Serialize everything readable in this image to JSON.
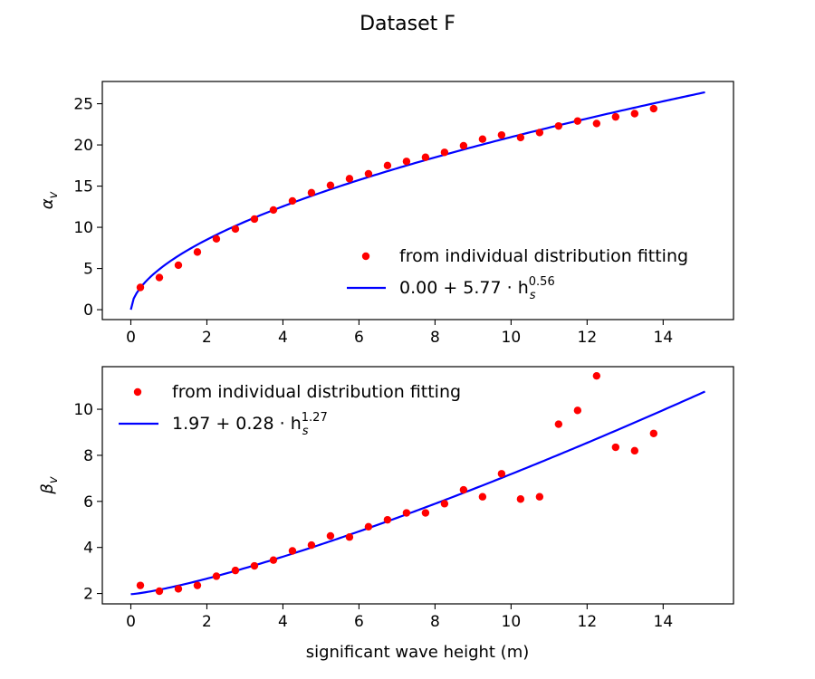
{
  "figure": {
    "title": "Dataset F",
    "xlabel": "significant wave height (m)"
  },
  "chart_data": [
    {
      "type": "scatter",
      "name": "alpha",
      "ylabel_symbol": "α",
      "ylabel_sub": "v",
      "xlim": [
        -0.75,
        15.85
      ],
      "ylim": [
        -1.2,
        27.7
      ],
      "xticks": [
        0,
        2,
        4,
        6,
        8,
        10,
        12,
        14
      ],
      "yticks": [
        0,
        5,
        10,
        15,
        20,
        25
      ],
      "legend_position": "lower-right",
      "points": {
        "label": "from individual distribution fitting",
        "color": "#ff0000",
        "x": [
          0.25,
          0.75,
          1.25,
          1.75,
          2.25,
          2.75,
          3.25,
          3.75,
          4.25,
          4.75,
          5.25,
          5.75,
          6.25,
          6.75,
          7.25,
          7.75,
          8.25,
          8.75,
          9.25,
          9.75,
          10.25,
          10.75,
          11.25,
          11.75,
          12.25,
          12.75,
          13.25,
          13.75
        ],
        "y": [
          2.7,
          3.9,
          5.4,
          7.0,
          8.6,
          9.8,
          11.0,
          12.1,
          13.2,
          14.2,
          15.1,
          15.9,
          16.5,
          17.5,
          18.0,
          18.5,
          19.1,
          19.9,
          20.7,
          21.2,
          20.9,
          21.5,
          22.3,
          22.9,
          22.6,
          23.4,
          23.8,
          24.4
        ]
      },
      "fit": {
        "label_base": "0.00 + 5.77 · h",
        "label_sub": "s",
        "label_exp": "0.56",
        "color": "#0000ff",
        "a": 0.0,
        "b": 5.77,
        "c": 0.56,
        "x_range": [
          0,
          15.1
        ]
      }
    },
    {
      "type": "scatter",
      "name": "beta",
      "ylabel_symbol": "β",
      "ylabel_sub": "v",
      "xlim": [
        -0.75,
        15.85
      ],
      "ylim": [
        1.55,
        11.85
      ],
      "xticks": [
        0,
        2,
        4,
        6,
        8,
        10,
        12,
        14
      ],
      "yticks": [
        2,
        4,
        6,
        8,
        10
      ],
      "legend_position": "upper-left",
      "points": {
        "label": "from individual distribution fitting",
        "color": "#ff0000",
        "x": [
          0.25,
          0.75,
          1.25,
          1.75,
          2.25,
          2.75,
          3.25,
          3.75,
          4.25,
          4.75,
          5.25,
          5.75,
          6.25,
          6.75,
          7.25,
          7.75,
          8.25,
          8.75,
          9.25,
          9.75,
          10.25,
          10.75,
          11.25,
          11.75,
          12.25,
          12.75,
          13.25,
          13.75
        ],
        "y": [
          2.35,
          2.1,
          2.2,
          2.35,
          2.75,
          3.0,
          3.2,
          3.45,
          3.85,
          4.1,
          4.5,
          4.45,
          4.9,
          5.2,
          5.5,
          5.5,
          5.9,
          6.5,
          6.2,
          7.2,
          6.1,
          6.2,
          9.35,
          9.95,
          11.45,
          8.35,
          8.2,
          8.95
        ]
      },
      "fit": {
        "label_base": "1.97 + 0.28 · h",
        "label_sub": "s",
        "label_exp": "1.27",
        "color": "#0000ff",
        "a": 1.97,
        "b": 0.28,
        "c": 1.27,
        "x_range": [
          0,
          15.1
        ]
      }
    }
  ]
}
